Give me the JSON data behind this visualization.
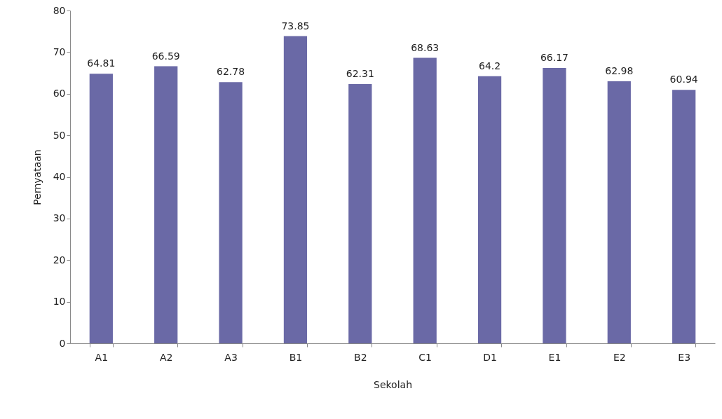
{
  "chart_data": {
    "type": "bar",
    "xlabel": "Sekolah",
    "ylabel": "Pernyataan",
    "categories": [
      "A1",
      "A2",
      "A3",
      "B1",
      "B2",
      "C1",
      "D1",
      "E1",
      "E2",
      "E3"
    ],
    "values": [
      64.81,
      66.59,
      62.78,
      73.85,
      62.31,
      68.63,
      64.2,
      66.17,
      62.98,
      60.94
    ],
    "color": "#6a69a6",
    "ylim": [
      0,
      80
    ],
    "yticks": [
      0,
      10,
      20,
      30,
      40,
      50,
      60,
      70,
      80
    ],
    "data_labels": true,
    "grid": false
  }
}
